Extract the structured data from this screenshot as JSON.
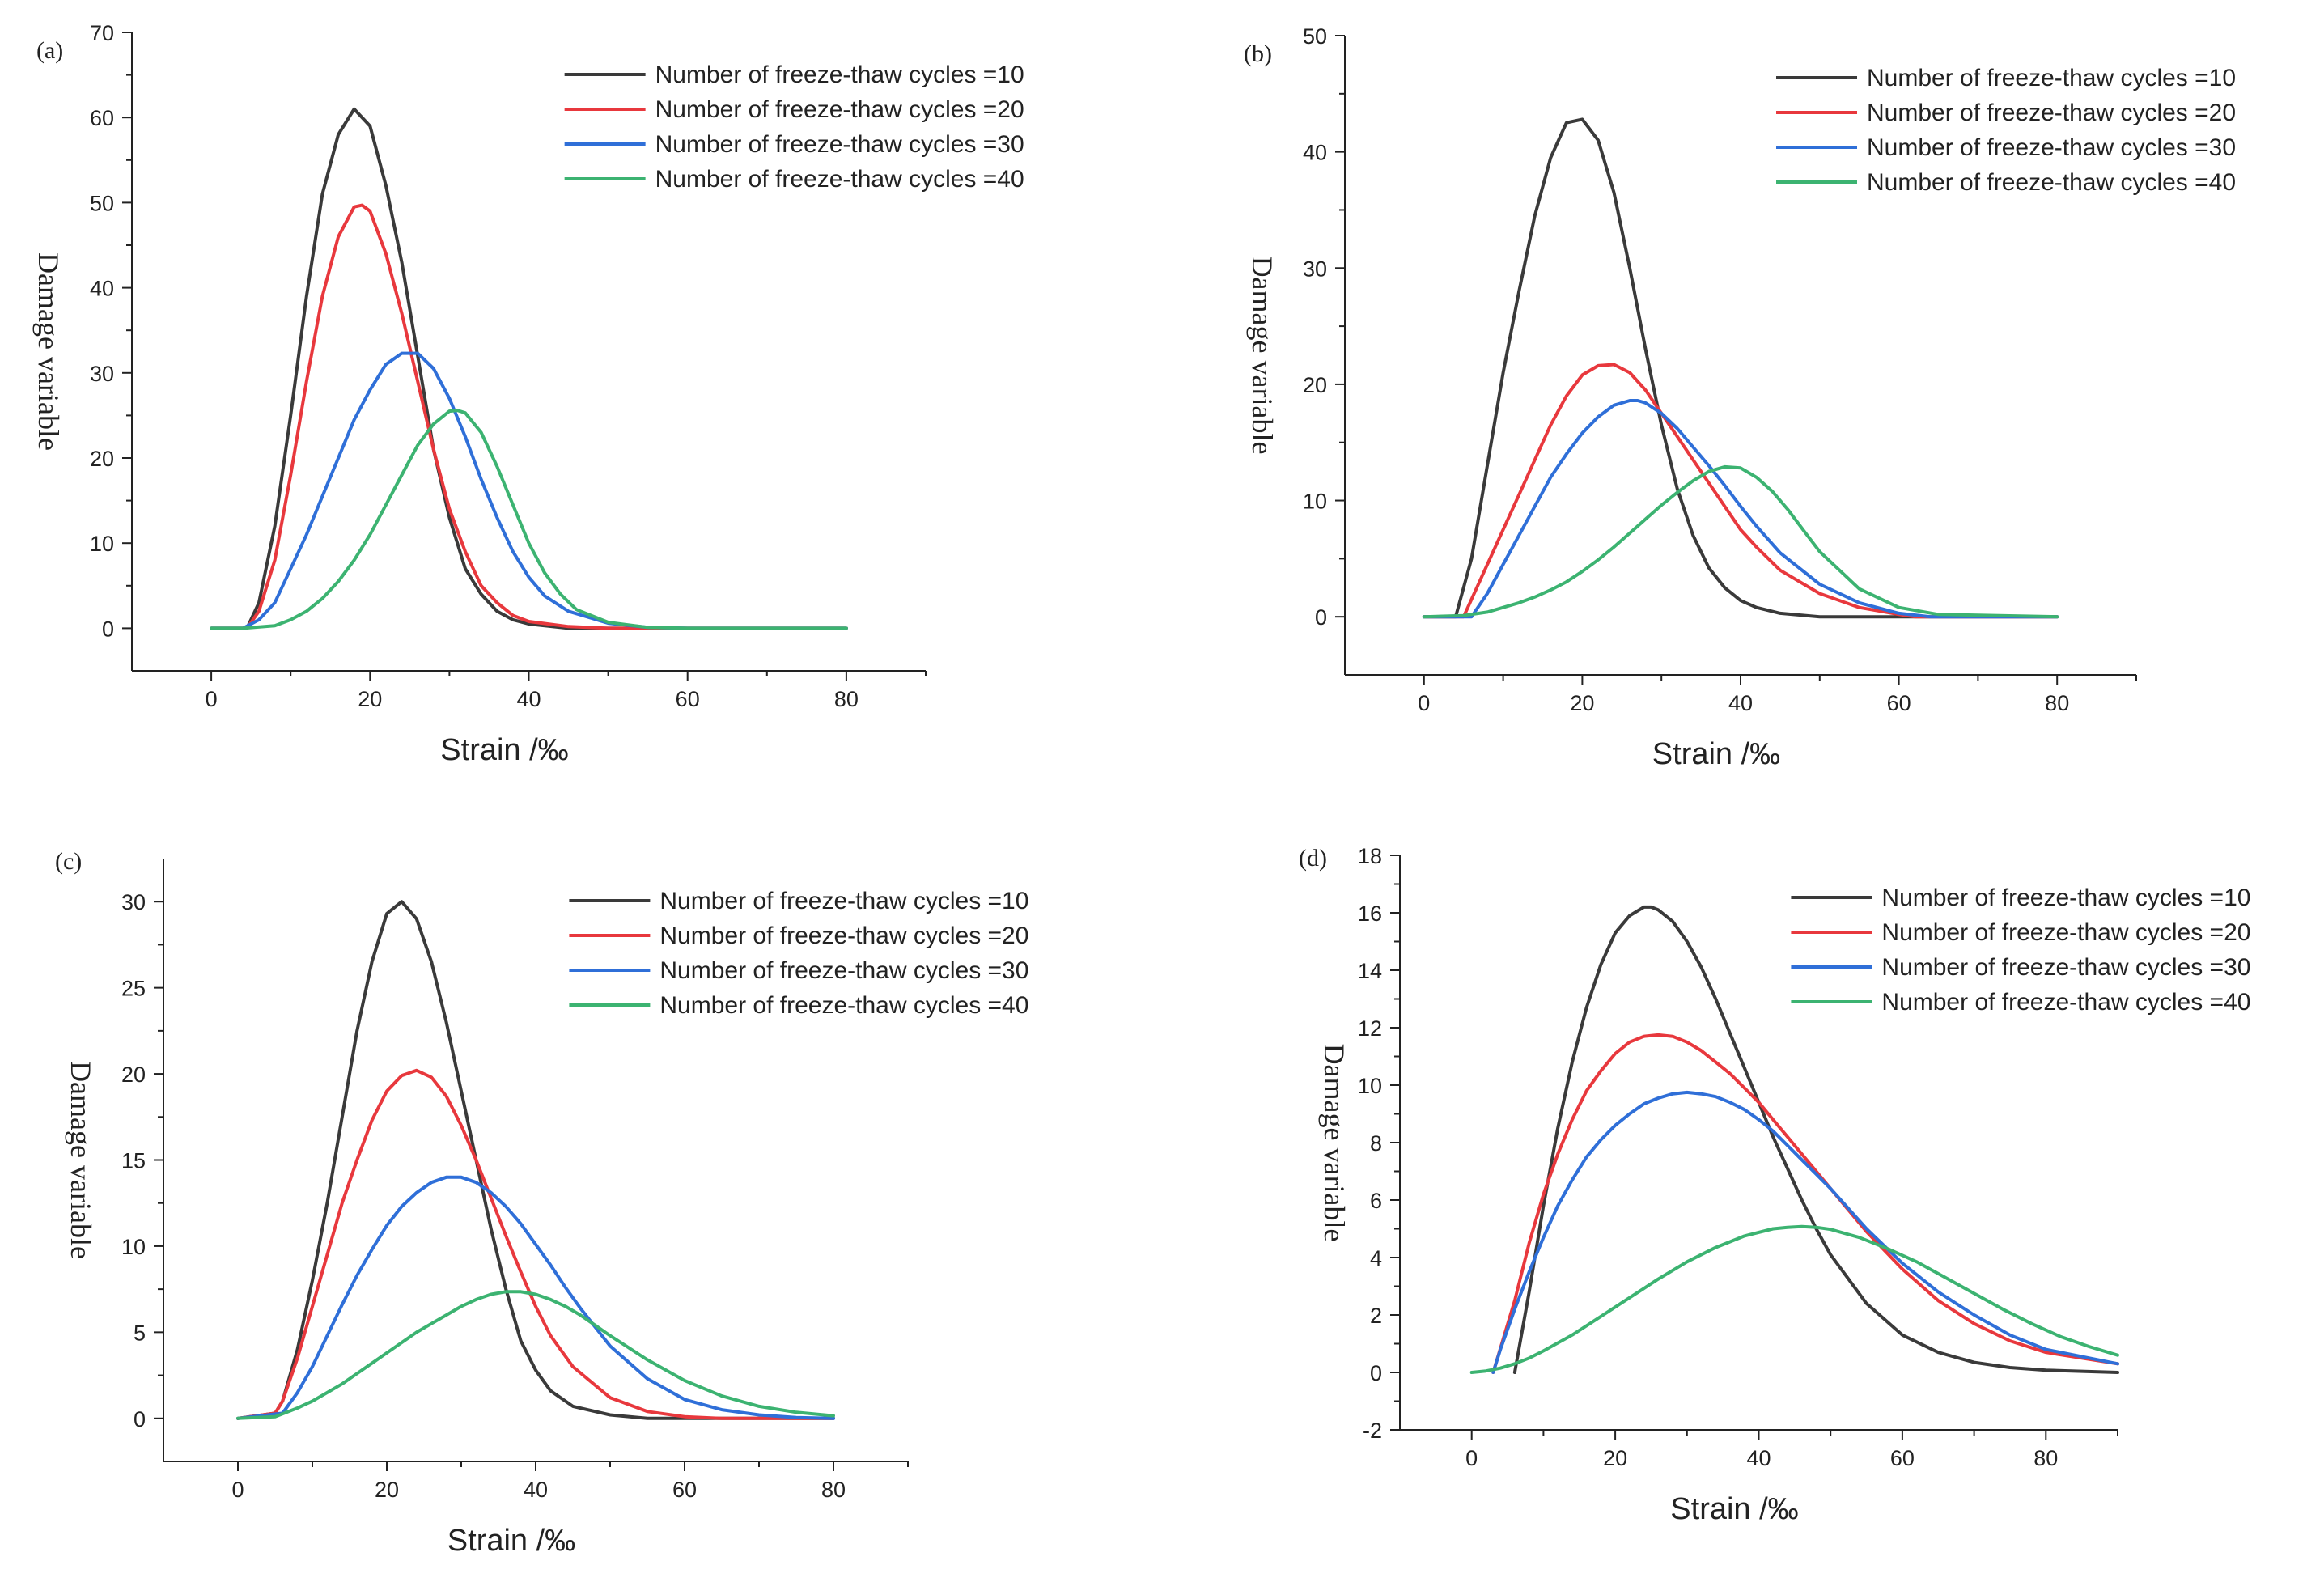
{
  "figure": {
    "panels": [
      {
        "id": "a",
        "panel_label": "(a)",
        "x_axis_label": "Strain /‰",
        "y_axis_label": "Damage variable"
      },
      {
        "id": "b",
        "panel_label": "(b)",
        "x_axis_label": "Strain /‰",
        "y_axis_label": "Damage variable"
      },
      {
        "id": "c",
        "panel_label": "(c)",
        "x_axis_label": "Strain /‰",
        "y_axis_label": "Damage variable"
      },
      {
        "id": "d",
        "panel_label": "(d)",
        "x_axis_label": "Strain /‰",
        "y_axis_label": "Damage variable"
      }
    ]
  },
  "series_colors": {
    "10": "#3a3a3a",
    "20": "#e8383d",
    "30": "#2f6fd8",
    "40": "#3cb371"
  },
  "chart_data": [
    {
      "type": "line",
      "title": "(a)",
      "xlabel": "Strain /‰",
      "ylabel": "Damage variable",
      "xlim": [
        -10,
        90
      ],
      "ylim": [
        -5,
        70
      ],
      "xticks": [
        0,
        20,
        40,
        60,
        80
      ],
      "yticks": [
        0,
        10,
        20,
        30,
        40,
        50,
        60,
        70
      ],
      "grid": false,
      "legend_position": "top-right",
      "series": [
        {
          "name": "Number of freeze-thaw cycles =10",
          "color": "#3a3a3a",
          "x": [
            0,
            4.5,
            6,
            8,
            10,
            12,
            14,
            16,
            18,
            20,
            22,
            24,
            26,
            28,
            30,
            32,
            34,
            36,
            38,
            40,
            45,
            50,
            60,
            80
          ],
          "y": [
            0,
            0,
            3,
            12,
            25,
            39,
            51,
            58,
            61,
            59,
            52,
            43,
            32,
            21,
            13,
            7,
            4,
            2,
            1,
            0.5,
            0,
            0,
            0,
            0
          ]
        },
        {
          "name": "Number of freeze-thaw cycles =20",
          "color": "#e8383d",
          "x": [
            0,
            4.5,
            6,
            8,
            10,
            12,
            14,
            16,
            18,
            19,
            20,
            22,
            24,
            26,
            28,
            30,
            32,
            34,
            36,
            38,
            40,
            45,
            50,
            60,
            80
          ],
          "y": [
            0,
            0,
            2,
            8,
            18,
            29,
            39,
            46,
            49.5,
            49.7,
            49,
            44,
            37,
            29,
            21,
            14,
            9,
            5,
            3,
            1.5,
            0.8,
            0.2,
            0,
            0,
            0
          ]
        },
        {
          "name": "Number of freeze-thaw cycles =30",
          "color": "#2f6fd8",
          "x": [
            0,
            4,
            6,
            8,
            10,
            12,
            14,
            16,
            18,
            20,
            22,
            24,
            26,
            28,
            30,
            32,
            34,
            36,
            38,
            40,
            42,
            45,
            50,
            55,
            60,
            80
          ],
          "y": [
            0,
            0,
            1,
            3,
            7,
            11,
            15.5,
            20,
            24.5,
            28,
            31,
            32.3,
            32.3,
            30.5,
            27,
            22.5,
            17.5,
            13,
            9,
            6,
            3.8,
            2,
            0.6,
            0.1,
            0,
            0
          ]
        },
        {
          "name": "Number of freeze-thaw cycles =40",
          "color": "#3cb371",
          "x": [
            0,
            4,
            8,
            10,
            12,
            14,
            16,
            18,
            20,
            22,
            24,
            26,
            28,
            30,
            31,
            32,
            34,
            36,
            38,
            40,
            42,
            44,
            46,
            50,
            55,
            60,
            80
          ],
          "y": [
            0,
            0,
            0.3,
            1,
            2,
            3.5,
            5.5,
            8,
            11,
            14.5,
            18,
            21.5,
            24,
            25.5,
            25.6,
            25.3,
            23,
            19,
            14.5,
            10,
            6.5,
            4,
            2.2,
            0.7,
            0.1,
            0,
            0
          ]
        }
      ]
    },
    {
      "type": "line",
      "title": "(b)",
      "xlabel": "Strain /‰",
      "ylabel": "Damage variable",
      "xlim": [
        -10,
        90
      ],
      "ylim": [
        -5,
        50
      ],
      "xticks": [
        0,
        20,
        40,
        60,
        80
      ],
      "yticks": [
        0,
        10,
        20,
        30,
        40,
        50
      ],
      "grid": false,
      "legend_position": "top-right",
      "series": [
        {
          "name": "Number of freeze-thaw cycles =10",
          "color": "#3a3a3a",
          "x": [
            0,
            4,
            6,
            8,
            10,
            12,
            14,
            16,
            18,
            20,
            22,
            24,
            26,
            28,
            30,
            32,
            34,
            36,
            38,
            40,
            42,
            45,
            50,
            55,
            60,
            80
          ],
          "y": [
            0,
            0,
            5,
            13,
            21,
            28,
            34.5,
            39.5,
            42.5,
            42.8,
            41,
            36.5,
            30,
            23,
            16.5,
            11,
            7,
            4.2,
            2.5,
            1.4,
            0.8,
            0.3,
            0,
            0,
            0,
            0
          ]
        },
        {
          "name": "Number of freeze-thaw cycles =20",
          "color": "#e8383d",
          "x": [
            0,
            5,
            7,
            10,
            12,
            14,
            16,
            18,
            20,
            22,
            24,
            26,
            28,
            30,
            32,
            34,
            36,
            38,
            40,
            42,
            45,
            50,
            55,
            60,
            62,
            80
          ],
          "y": [
            0,
            0,
            3,
            7.5,
            10.5,
            13.5,
            16.5,
            19,
            20.8,
            21.6,
            21.7,
            21,
            19.5,
            17.5,
            15.5,
            13.5,
            11.5,
            9.5,
            7.5,
            6,
            4,
            2,
            0.8,
            0.2,
            0,
            0
          ]
        },
        {
          "name": "Number of freeze-thaw cycles =30",
          "color": "#2f6fd8",
          "x": [
            0,
            6,
            8,
            10,
            12,
            14,
            16,
            18,
            20,
            22,
            24,
            26,
            27,
            28,
            30,
            32,
            34,
            36,
            38,
            40,
            42,
            45,
            50,
            55,
            60,
            64,
            80
          ],
          "y": [
            0,
            0,
            2,
            4.5,
            7,
            9.5,
            12,
            14,
            15.8,
            17.2,
            18.2,
            18.6,
            18.6,
            18.4,
            17.5,
            16.2,
            14.6,
            13,
            11.3,
            9.5,
            7.8,
            5.5,
            2.8,
            1.2,
            0.3,
            0,
            0
          ]
        },
        {
          "name": "Number of freeze-thaw cycles =40",
          "color": "#3cb371",
          "x": [
            0,
            5,
            8,
            10,
            12,
            14,
            16,
            18,
            20,
            22,
            24,
            26,
            28,
            30,
            32,
            34,
            36,
            38,
            40,
            42,
            44,
            46,
            48,
            50,
            55,
            60,
            65,
            80
          ],
          "y": [
            0,
            0.1,
            0.4,
            0.8,
            1.2,
            1.7,
            2.3,
            3,
            3.9,
            4.9,
            6,
            7.2,
            8.4,
            9.6,
            10.7,
            11.7,
            12.5,
            12.9,
            12.8,
            12,
            10.8,
            9.2,
            7.4,
            5.6,
            2.4,
            0.8,
            0.2,
            0
          ]
        }
      ]
    },
    {
      "type": "line",
      "title": "(c)",
      "xlabel": "Strain /‰",
      "ylabel": "Damage variable",
      "xlim": [
        -10,
        90
      ],
      "ylim": [
        -2.5,
        32.5
      ],
      "xticks": [
        0,
        20,
        40,
        60,
        80
      ],
      "yticks": [
        0,
        5,
        10,
        15,
        20,
        25,
        30
      ],
      "grid": false,
      "legend_position": "top-right",
      "series": [
        {
          "name": "Number of freeze-thaw cycles =10",
          "color": "#3a3a3a",
          "x": [
            0,
            5,
            6,
            8,
            10,
            12,
            14,
            16,
            18,
            20,
            22,
            24,
            26,
            28,
            30,
            32,
            34,
            36,
            38,
            40,
            42,
            45,
            50,
            55,
            60,
            80
          ],
          "y": [
            0,
            0.3,
            1,
            4,
            8,
            12.5,
            17.5,
            22.5,
            26.5,
            29.3,
            30,
            29,
            26.5,
            23,
            19,
            15,
            11,
            7.5,
            4.5,
            2.8,
            1.6,
            0.7,
            0.2,
            0,
            0,
            0
          ]
        },
        {
          "name": "Number of freeze-thaw cycles =20",
          "color": "#e8383d",
          "x": [
            0,
            5,
            6,
            8,
            10,
            12,
            14,
            16,
            18,
            20,
            22,
            24,
            26,
            28,
            30,
            32,
            34,
            36,
            38,
            40,
            42,
            45,
            50,
            55,
            60,
            65,
            80
          ],
          "y": [
            0,
            0.3,
            1,
            3.5,
            6.5,
            9.5,
            12.5,
            15,
            17.3,
            19,
            19.9,
            20.2,
            19.8,
            18.7,
            17,
            15,
            12.8,
            10.6,
            8.5,
            6.5,
            4.8,
            3,
            1.2,
            0.4,
            0.1,
            0,
            0
          ]
        },
        {
          "name": "Number of freeze-thaw cycles =30",
          "color": "#2f6fd8",
          "x": [
            0,
            6,
            8,
            10,
            12,
            14,
            16,
            18,
            20,
            22,
            24,
            26,
            28,
            30,
            32,
            34,
            36,
            38,
            40,
            42,
            44,
            46,
            48,
            50,
            55,
            60,
            65,
            70,
            75,
            80
          ],
          "y": [
            0,
            0.3,
            1.5,
            3,
            4.8,
            6.6,
            8.3,
            9.8,
            11.2,
            12.3,
            13.1,
            13.7,
            14,
            14,
            13.7,
            13.1,
            12.3,
            11.3,
            10.1,
            8.9,
            7.6,
            6.4,
            5.3,
            4.2,
            2.3,
            1.1,
            0.5,
            0.2,
            0.05,
            0
          ]
        },
        {
          "name": "Number of freeze-thaw cycles =40",
          "color": "#3cb371",
          "x": [
            0,
            5,
            8,
            10,
            12,
            14,
            16,
            18,
            20,
            22,
            24,
            26,
            28,
            30,
            32,
            34,
            36,
            38,
            40,
            42,
            44,
            46,
            48,
            50,
            55,
            60,
            65,
            70,
            75,
            80
          ],
          "y": [
            0,
            0.1,
            0.6,
            1,
            1.5,
            2,
            2.6,
            3.2,
            3.8,
            4.4,
            5,
            5.5,
            6,
            6.5,
            6.9,
            7.2,
            7.35,
            7.35,
            7.2,
            6.9,
            6.5,
            6,
            5.4,
            4.8,
            3.4,
            2.2,
            1.3,
            0.7,
            0.35,
            0.15
          ]
        }
      ]
    },
    {
      "type": "line",
      "title": "(d)",
      "xlabel": "Strain /‰",
      "ylabel": "Damage variable",
      "xlim": [
        -10,
        90
      ],
      "ylim": [
        -2,
        18
      ],
      "xticks": [
        0,
        20,
        40,
        60,
        80
      ],
      "yticks": [
        -2,
        0,
        2,
        4,
        6,
        8,
        10,
        12,
        14,
        16,
        18
      ],
      "grid": false,
      "legend_position": "top-right",
      "series": [
        {
          "name": "Number of freeze-thaw cycles =10",
          "color": "#3a3a3a",
          "x": [
            6,
            8,
            10,
            12,
            14,
            16,
            18,
            20,
            22,
            24,
            25,
            26,
            28,
            30,
            32,
            34,
            36,
            38,
            40,
            42,
            44,
            46,
            48,
            50,
            55,
            60,
            65,
            70,
            75,
            80,
            90
          ],
          "y": [
            0,
            2.8,
            5.8,
            8.5,
            10.8,
            12.7,
            14.2,
            15.3,
            15.9,
            16.2,
            16.2,
            16.1,
            15.7,
            15,
            14.1,
            13,
            11.8,
            10.6,
            9.4,
            8.2,
            7.1,
            6,
            5,
            4.1,
            2.4,
            1.3,
            0.7,
            0.35,
            0.17,
            0.08,
            0
          ]
        },
        {
          "name": "Number of freeze-thaw cycles =20",
          "color": "#e8383d",
          "x": [
            3,
            6,
            8,
            10,
            12,
            14,
            16,
            18,
            20,
            22,
            24,
            26,
            28,
            30,
            32,
            34,
            36,
            38,
            40,
            42,
            44,
            46,
            48,
            50,
            55,
            60,
            65,
            70,
            75,
            80,
            90
          ],
          "y": [
            0,
            2.5,
            4.5,
            6.2,
            7.6,
            8.8,
            9.8,
            10.5,
            11.1,
            11.5,
            11.7,
            11.75,
            11.7,
            11.5,
            11.2,
            10.8,
            10.4,
            9.9,
            9.4,
            8.8,
            8.2,
            7.6,
            7,
            6.4,
            4.9,
            3.6,
            2.5,
            1.7,
            1.1,
            0.7,
            0.3
          ]
        },
        {
          "name": "Number of freeze-thaw cycles =30",
          "color": "#2f6fd8",
          "x": [
            3,
            4,
            6,
            8,
            10,
            12,
            14,
            16,
            18,
            20,
            22,
            24,
            26,
            28,
            30,
            32,
            34,
            36,
            38,
            40,
            42,
            44,
            46,
            48,
            50,
            55,
            60,
            65,
            70,
            75,
            80,
            90
          ],
          "y": [
            0,
            0.8,
            2.2,
            3.5,
            4.7,
            5.8,
            6.7,
            7.5,
            8.1,
            8.6,
            9,
            9.35,
            9.55,
            9.7,
            9.75,
            9.7,
            9.6,
            9.4,
            9.15,
            8.8,
            8.4,
            7.9,
            7.4,
            6.9,
            6.4,
            5,
            3.8,
            2.8,
            2,
            1.3,
            0.8,
            0.3
          ]
        },
        {
          "name": "Number of freeze-thaw cycles =40",
          "color": "#3cb371",
          "x": [
            0,
            2,
            4,
            6,
            8,
            10,
            14,
            18,
            22,
            26,
            30,
            34,
            38,
            42,
            44,
            46,
            48,
            50,
            54,
            58,
            62,
            66,
            70,
            74,
            78,
            82,
            86,
            90
          ],
          "y": [
            0,
            0.05,
            0.15,
            0.3,
            0.5,
            0.75,
            1.3,
            1.95,
            2.6,
            3.25,
            3.85,
            4.35,
            4.75,
            5,
            5.05,
            5.08,
            5.05,
            4.98,
            4.7,
            4.3,
            3.85,
            3.3,
            2.75,
            2.2,
            1.7,
            1.25,
            0.9,
            0.6
          ]
        }
      ]
    }
  ]
}
